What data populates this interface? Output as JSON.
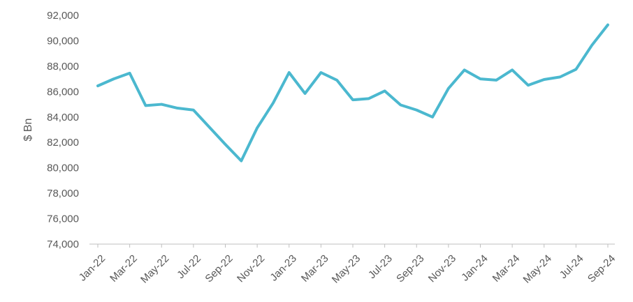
{
  "chart_data": {
    "type": "line",
    "title": "",
    "xlabel": "",
    "ylabel": "$ Bn",
    "ylim": [
      74000,
      92000
    ],
    "ytick_labels": [
      "74,000",
      "76,000",
      "78,000",
      "80,000",
      "82,000",
      "84,000",
      "86,000",
      "88,000",
      "90,000",
      "92,000"
    ],
    "ytick_values": [
      74000,
      76000,
      78000,
      80000,
      82000,
      84000,
      86000,
      88000,
      90000,
      92000
    ],
    "grid": false,
    "legend": "none",
    "line_color": "#4bb8cf",
    "x": [
      "Jan-22",
      "Feb-22",
      "Mar-22",
      "Apr-22",
      "May-22",
      "Jun-22",
      "Jul-22",
      "Aug-22",
      "Sep-22",
      "Oct-22",
      "Nov-22",
      "Dec-22",
      "Jan-23",
      "Feb-23",
      "Mar-23",
      "Apr-23",
      "May-23",
      "Jun-23",
      "Jul-23",
      "Aug-23",
      "Sep-23",
      "Oct-23",
      "Nov-23",
      "Dec-23",
      "Jan-24",
      "Feb-24",
      "Mar-24",
      "Apr-24",
      "May-24",
      "Jun-24",
      "Jul-24",
      "Aug-24",
      "Sep-24"
    ],
    "xtick_labels": [
      "Jan-22",
      "Mar-22",
      "May-22",
      "Jul-22",
      "Sep-22",
      "Nov-22",
      "Jan-23",
      "Mar-23",
      "May-23",
      "Jul-23",
      "Sep-23",
      "Nov-23",
      "Jan-24",
      "Mar-24",
      "May-24",
      "Jul-24",
      "Sep-24"
    ],
    "series": [
      {
        "values": [
          86450,
          87000,
          87450,
          84900,
          85000,
          84700,
          84550,
          83200,
          81850,
          80550,
          83150,
          85100,
          87500,
          85850,
          87500,
          86900,
          85350,
          85450,
          86050,
          84950,
          84550,
          84000,
          86250,
          87700,
          87000,
          86900,
          87700,
          86500,
          86950,
          87150,
          87750,
          89650,
          91250
        ]
      }
    ]
  }
}
